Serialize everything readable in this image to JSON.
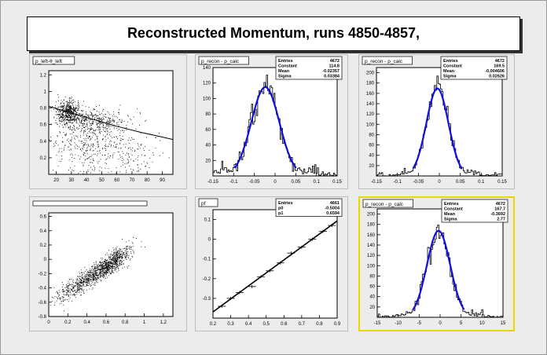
{
  "title": "Reconstructed Momentum, runs 4850-4857,",
  "chart_data": [
    {
      "id": "p1",
      "type": "scatter",
      "title": "p_left-θ_left",
      "xlim": [
        15,
        97
      ],
      "ylim": [
        0,
        1.25
      ],
      "xticks": [
        20,
        30,
        40,
        50,
        60,
        70,
        80,
        90
      ],
      "yticks": [
        0.2,
        0.4,
        0.6,
        0.8,
        1,
        1.2
      ],
      "curve": [
        [
          15,
          0.82
        ],
        [
          30,
          0.74
        ],
        [
          45,
          0.66
        ],
        [
          60,
          0.58
        ],
        [
          75,
          0.51
        ],
        [
          90,
          0.45
        ],
        [
          97,
          0.42
        ]
      ],
      "cluster": [
        {
          "cx": 28,
          "cy": 0.75,
          "sx": 4,
          "sy": 0.07,
          "n": 520
        },
        {
          "cx": 45,
          "cy": 0.65,
          "sx": 10,
          "sy": 0.07,
          "n": 320
        },
        {
          "cx": 40,
          "cy": 0.4,
          "sx": 14,
          "sy": 0.17,
          "n": 380
        },
        {
          "cx": 65,
          "cy": 0.28,
          "sx": 14,
          "sy": 0.15,
          "n": 180
        }
      ]
    },
    {
      "id": "p2",
      "type": "histogram",
      "title": "p_recon - p_calc",
      "xlim": [
        -0.15,
        0.15
      ],
      "ylim": [
        0,
        140
      ],
      "xticks": [
        -0.15,
        -0.1,
        -0.05,
        0,
        0.05,
        0.1,
        0.15
      ],
      "yticks": [
        20,
        40,
        60,
        80,
        100,
        120,
        140
      ],
      "fit": {
        "constant": 114.8,
        "mean": -0.02357,
        "sigma": 0.03384
      },
      "stats": [
        [
          "Entries",
          "4672"
        ],
        [
          "Constant",
          "114.8"
        ],
        [
          "Mean",
          "-0.02357"
        ],
        [
          "Sigma",
          "0.03384"
        ]
      ]
    },
    {
      "id": "p3",
      "type": "histogram",
      "title": "p_recon - p_calc",
      "xlim": [
        -0.15,
        0.15
      ],
      "ylim": [
        0,
        210
      ],
      "xticks": [
        -0.15,
        -0.1,
        -0.05,
        0,
        0.05,
        0.1,
        0.15
      ],
      "yticks": [
        20,
        40,
        60,
        80,
        100,
        120,
        140,
        160,
        180,
        200
      ],
      "fit": {
        "constant": 169.5,
        "mean": -0.004606,
        "sigma": 0.02626
      },
      "stats": [
        [
          "Entries",
          "4672"
        ],
        [
          "Constant",
          "169.5"
        ],
        [
          "Mean",
          "-0.004606"
        ],
        [
          "Sigma",
          "0.02626"
        ]
      ]
    },
    {
      "id": "p4",
      "type": "scatter",
      "title": "",
      "xlim": [
        0,
        1.3
      ],
      "ylim": [
        -0.8,
        0.65
      ],
      "xticks": [
        0,
        0.2,
        0.4,
        0.6,
        0.8,
        1,
        1.2
      ],
      "yticks": [
        -0.8,
        -0.6,
        -0.4,
        -0.2,
        0,
        0.2,
        0.4,
        0.6
      ],
      "band": {
        "slope": 0.86,
        "intercept": -0.62,
        "spread": 0.07
      },
      "cluster": [
        {
          "cx": 0.65,
          "cy": -0.05,
          "sx": 0.1,
          "sy": 0.07,
          "n": 600
        },
        {
          "cx": 0.4,
          "cy": -0.27,
          "sx": 0.18,
          "sy": 0.1,
          "n": 700
        }
      ]
    },
    {
      "id": "p5",
      "type": "line",
      "title": "pf",
      "xlim": [
        0.2,
        0.9
      ],
      "ylim": [
        -0.4,
        0.15
      ],
      "xticks": [
        0.2,
        0.3,
        0.4,
        0.5,
        0.6,
        0.7,
        0.8,
        0.9
      ],
      "yticks": [
        -0.3,
        -0.2,
        -0.1,
        0,
        0.1
      ],
      "fit": {
        "p0": -0.5004,
        "p1": 0.6594
      },
      "points": [
        [
          0.25,
          -0.34
        ],
        [
          0.3,
          -0.3
        ],
        [
          0.35,
          -0.27
        ],
        [
          0.42,
          -0.24
        ],
        [
          0.47,
          -0.19
        ],
        [
          0.52,
          -0.16
        ],
        [
          0.58,
          -0.12
        ],
        [
          0.64,
          -0.07
        ],
        [
          0.7,
          -0.04
        ],
        [
          0.76,
          0.0
        ],
        [
          0.82,
          0.04
        ],
        [
          0.87,
          0.07
        ]
      ],
      "stats": [
        [
          "Entries",
          "4661"
        ],
        [
          "p0",
          "-0.5004"
        ],
        [
          "p1",
          "0.6594"
        ]
      ]
    },
    {
      "id": "p6",
      "type": "histogram",
      "title": "p_recon - p_calc",
      "xlim": [
        -15,
        15
      ],
      "ylim": [
        0,
        210
      ],
      "xticks": [
        -15,
        -10,
        -5,
        0,
        5,
        10,
        15
      ],
      "yticks": [
        20,
        40,
        60,
        80,
        100,
        120,
        140,
        160,
        180,
        200
      ],
      "fit": {
        "constant": 167.7,
        "mean": -0.3692,
        "sigma": 2.77
      },
      "stats": [
        [
          "Entries",
          "4672"
        ],
        [
          "Constant",
          "167.7"
        ],
        [
          "Mean",
          "-0.3692"
        ],
        [
          "Sigma",
          "2.77"
        ]
      ]
    }
  ]
}
